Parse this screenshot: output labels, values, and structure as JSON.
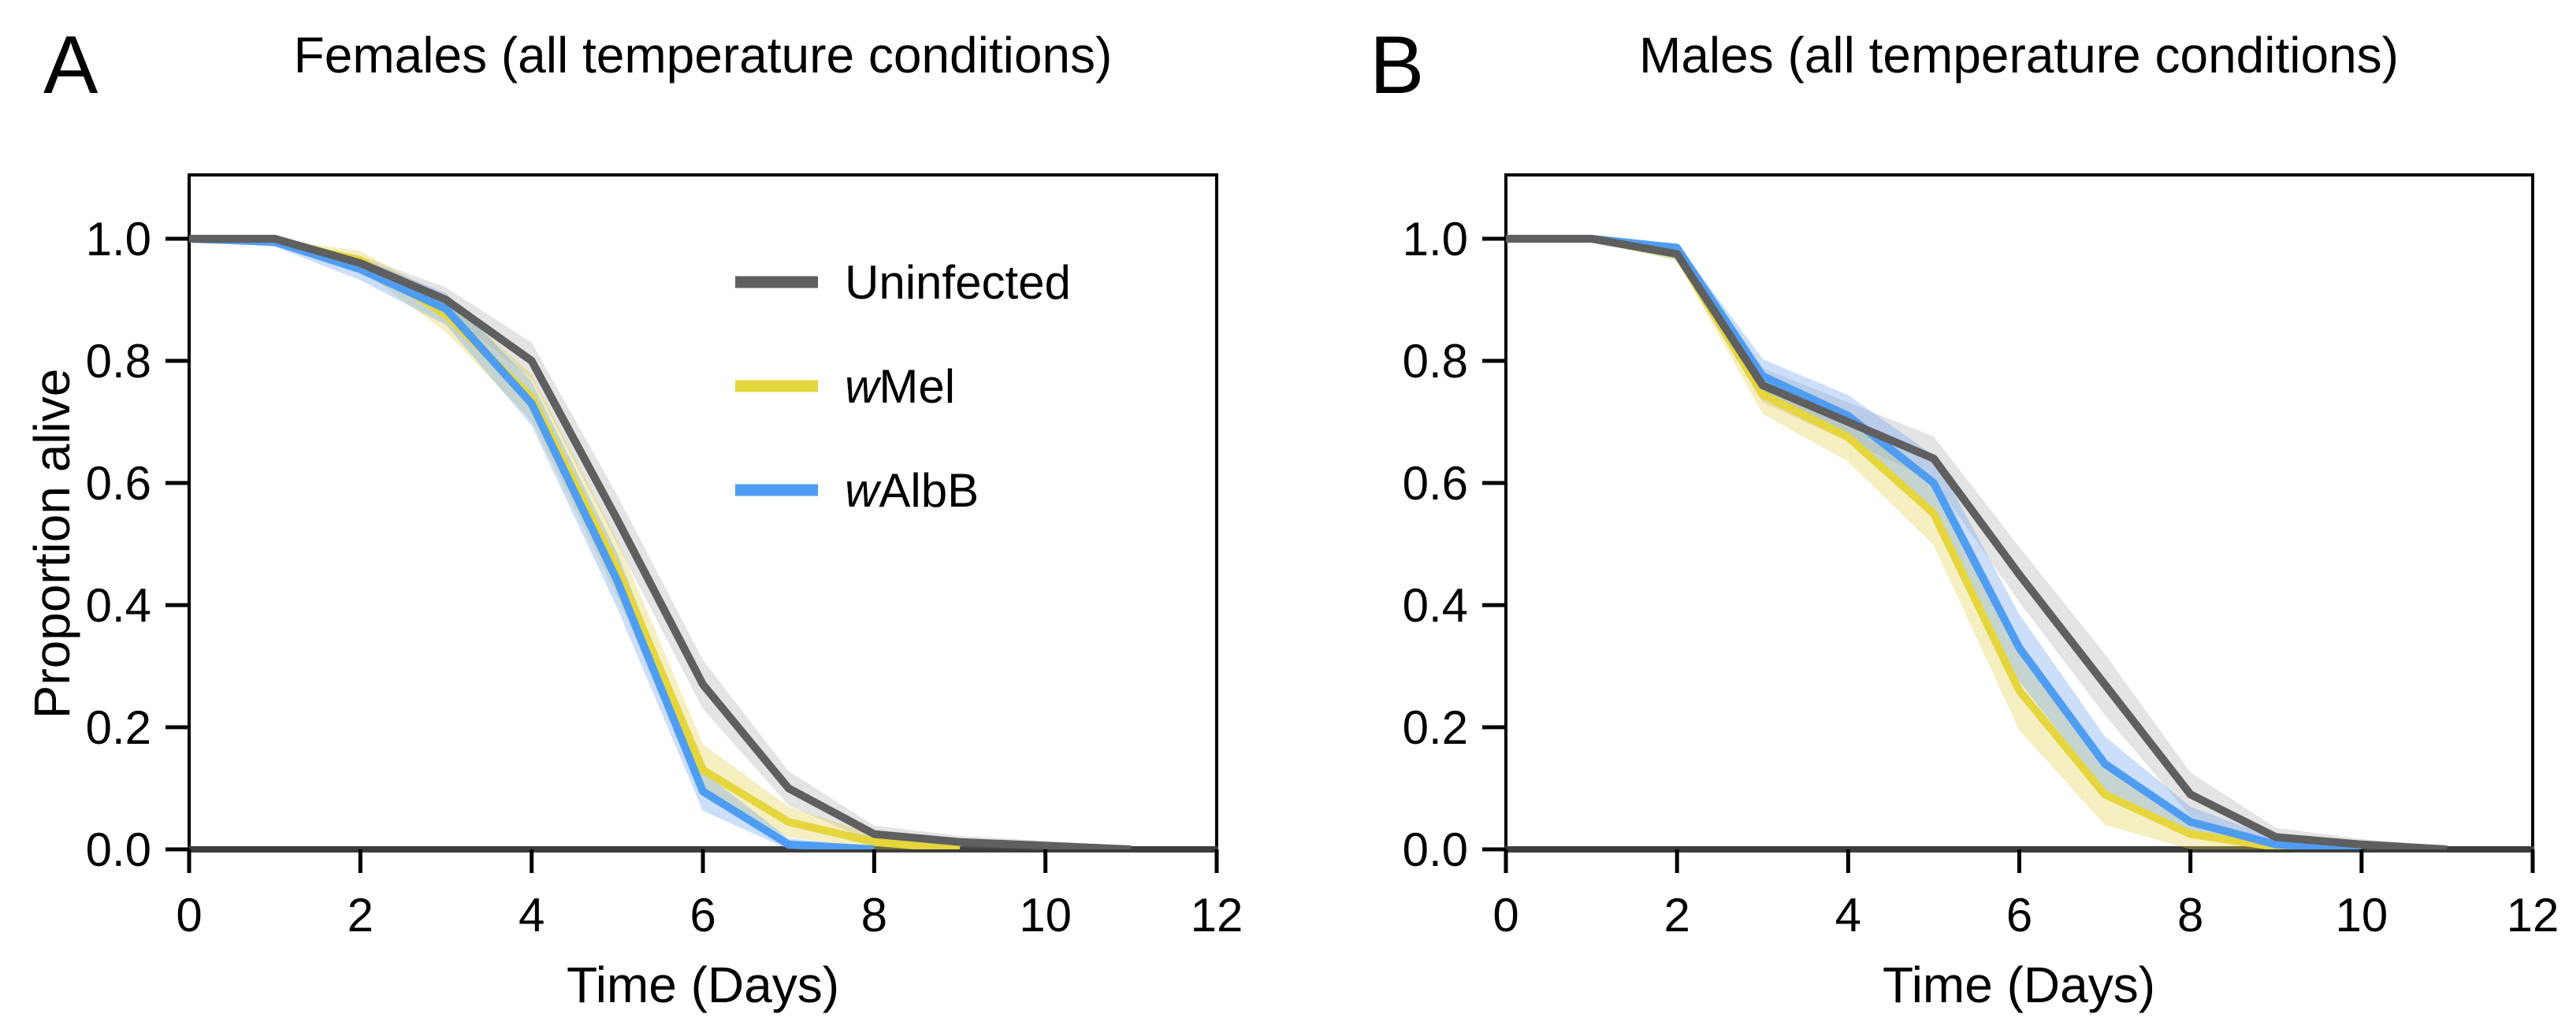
{
  "chart_data": [
    {
      "type": "line",
      "panel_label": "A",
      "title": "Females (all temperature conditions)",
      "xlabel": "Time (Days)",
      "ylabel": "Proportion alive",
      "xlim": [
        0,
        12
      ],
      "ylim": [
        0.0,
        1.0
      ],
      "x_ticks": [
        0,
        2,
        4,
        6,
        8,
        10,
        12
      ],
      "y_ticks": [
        1.0,
        0.8,
        0.6,
        0.4,
        0.2,
        0.0
      ],
      "y_tick_labels": [
        "1.0",
        "0.8",
        "0.6",
        "0.4",
        "0.2",
        "0.0"
      ],
      "grid": false,
      "legend": {
        "position": "upper-right-inside",
        "entries": [
          {
            "italic_prefix": "",
            "label": "Uninfected"
          },
          {
            "italic_prefix": "w",
            "label": "Mel"
          },
          {
            "italic_prefix": "w",
            "label": "AlbB"
          }
        ]
      },
      "series": [
        {
          "name": "Uninfected",
          "color": "#5f5f5f",
          "band_color": "rgba(130,130,130,0.22)",
          "days": [
            0,
            1,
            2,
            3,
            4,
            5,
            6,
            7,
            8,
            9,
            10,
            11
          ],
          "proportion_alive": [
            1.0,
            1.0,
            0.96,
            0.9,
            0.8,
            0.54,
            0.27,
            0.1,
            0.025,
            0.012,
            0.006,
            0.0
          ],
          "ci_halfwidth": [
            0.004,
            0.006,
            0.012,
            0.02,
            0.03,
            0.04,
            0.04,
            0.028,
            0.014,
            0.01,
            0.008,
            0.005
          ]
        },
        {
          "name": "wMel",
          "color": "#e5d63e",
          "band_color": "rgba(223,206,62,0.32)",
          "days": [
            0,
            1,
            2,
            3,
            4,
            5,
            6,
            7,
            8,
            9
          ],
          "proportion_alive": [
            1.0,
            0.995,
            0.965,
            0.875,
            0.74,
            0.46,
            0.13,
            0.045,
            0.012,
            0.0
          ],
          "ci_halfwidth": [
            0.004,
            0.008,
            0.015,
            0.028,
            0.038,
            0.047,
            0.042,
            0.025,
            0.012,
            0.006
          ]
        },
        {
          "name": "wAlbB",
          "color": "#4f9df2",
          "band_color": "rgba(108,163,240,0.35)",
          "days": [
            0,
            1,
            2,
            3,
            4,
            5,
            6,
            7,
            8
          ],
          "proportion_alive": [
            1.0,
            0.995,
            0.95,
            0.885,
            0.73,
            0.44,
            0.095,
            0.008,
            0.0
          ],
          "ci_halfwidth": [
            0.004,
            0.008,
            0.018,
            0.026,
            0.036,
            0.045,
            0.032,
            0.01,
            0.004
          ]
        }
      ]
    },
    {
      "type": "line",
      "panel_label": "B",
      "title": "Males (all temperature conditions)",
      "xlabel": "Time (Days)",
      "ylabel": "",
      "xlim": [
        0,
        12
      ],
      "ylim": [
        0.0,
        1.0
      ],
      "x_ticks": [
        0,
        2,
        4,
        6,
        8,
        10,
        12
      ],
      "y_ticks": [
        1.0,
        0.8,
        0.6,
        0.4,
        0.2,
        0.0
      ],
      "y_tick_labels": [
        "1.0",
        "0.8",
        "0.6",
        "0.4",
        "0.2",
        "0.0"
      ],
      "grid": false,
      "series": [
        {
          "name": "Uninfected",
          "color": "#5f5f5f",
          "band_color": "rgba(130,130,130,0.22)",
          "days": [
            0,
            1,
            2,
            3,
            4,
            5,
            6,
            7,
            8,
            9,
            10,
            11
          ],
          "proportion_alive": [
            1.0,
            1.0,
            0.975,
            0.76,
            0.7,
            0.64,
            0.45,
            0.27,
            0.09,
            0.02,
            0.008,
            0.0
          ],
          "ci_halfwidth": [
            0.004,
            0.005,
            0.01,
            0.028,
            0.032,
            0.036,
            0.045,
            0.05,
            0.036,
            0.015,
            0.009,
            0.005
          ]
        },
        {
          "name": "wMel",
          "color": "#e5d63e",
          "band_color": "rgba(223,206,62,0.32)",
          "days": [
            0,
            1,
            2,
            3,
            4,
            5,
            6,
            7,
            8,
            9,
            10
          ],
          "proportion_alive": [
            1.0,
            1.0,
            0.975,
            0.745,
            0.675,
            0.55,
            0.26,
            0.09,
            0.025,
            0.004,
            0.0
          ],
          "ci_halfwidth": [
            0.004,
            0.005,
            0.01,
            0.032,
            0.04,
            0.052,
            0.065,
            0.05,
            0.028,
            0.01,
            0.005
          ]
        },
        {
          "name": "wAlbB",
          "color": "#4f9df2",
          "band_color": "rgba(108,163,240,0.35)",
          "days": [
            0,
            1,
            2,
            3,
            4,
            5,
            6,
            7,
            8,
            9,
            10
          ],
          "proportion_alive": [
            1.0,
            1.0,
            0.985,
            0.775,
            0.71,
            0.6,
            0.33,
            0.14,
            0.045,
            0.008,
            0.0
          ],
          "ci_halfwidth": [
            0.004,
            0.005,
            0.008,
            0.028,
            0.034,
            0.045,
            0.055,
            0.045,
            0.025,
            0.01,
            0.005
          ]
        }
      ]
    }
  ]
}
